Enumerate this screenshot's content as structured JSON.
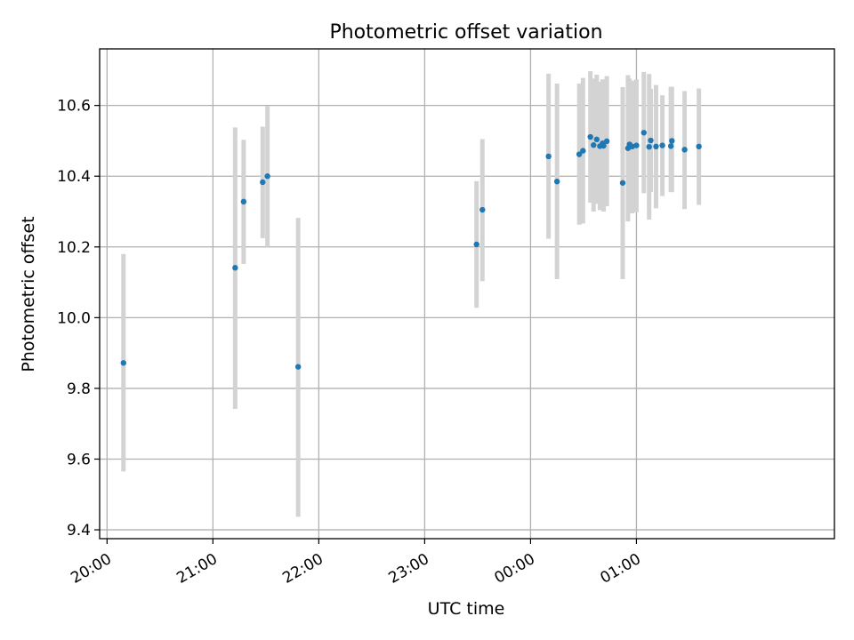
{
  "chart_data": {
    "type": "scatter",
    "title": "Photometric offset variation",
    "xlabel": "UTC time",
    "ylabel": "Photometric offset",
    "xlim_hours": [
      19.93,
      26.87
    ],
    "ylim": [
      9.375,
      10.76
    ],
    "grid": true,
    "x_ticks": [
      {
        "label": "20:00",
        "hour": 20
      },
      {
        "label": "21:00",
        "hour": 21
      },
      {
        "label": "22:00",
        "hour": 22
      },
      {
        "label": "23:00",
        "hour": 23
      },
      {
        "label": "00:00",
        "hour": 24
      },
      {
        "label": "01:00",
        "hour": 25
      }
    ],
    "y_ticks": [
      {
        "label": "9.4",
        "value": 9.4
      },
      {
        "label": "9.6",
        "value": 9.6
      },
      {
        "label": "9.8",
        "value": 9.8
      },
      {
        "label": "10.0",
        "value": 10.0
      },
      {
        "label": "10.2",
        "value": 10.2
      },
      {
        "label": "10.4",
        "value": 10.4
      },
      {
        "label": "10.6",
        "value": 10.6
      }
    ],
    "colors": {
      "point": "#1f77b4",
      "errorbar": "#d3d3d3",
      "grid": "#b0b0b0",
      "axes": "#000000"
    },
    "points": [
      {
        "hour": 20.155,
        "y": 9.872,
        "ylow": 9.565,
        "yhigh": 10.18
      },
      {
        "hour": 21.21,
        "y": 10.141,
        "ylow": 9.742,
        "yhigh": 10.538
      },
      {
        "hour": 21.29,
        "y": 10.328,
        "ylow": 10.152,
        "yhigh": 10.503
      },
      {
        "hour": 21.47,
        "y": 10.383,
        "ylow": 10.225,
        "yhigh": 10.54
      },
      {
        "hour": 21.515,
        "y": 10.4,
        "ylow": 10.2,
        "yhigh": 10.598
      },
      {
        "hour": 21.805,
        "y": 9.861,
        "ylow": 9.437,
        "yhigh": 10.282
      },
      {
        "hour": 23.49,
        "y": 10.207,
        "ylow": 10.028,
        "yhigh": 10.386
      },
      {
        "hour": 23.545,
        "y": 10.305,
        "ylow": 10.103,
        "yhigh": 10.505
      },
      {
        "hour": 24.17,
        "y": 10.456,
        "ylow": 10.223,
        "yhigh": 10.69
      },
      {
        "hour": 24.25,
        "y": 10.385,
        "ylow": 10.109,
        "yhigh": 10.662
      },
      {
        "hour": 24.46,
        "y": 10.462,
        "ylow": 10.263,
        "yhigh": 10.662
      },
      {
        "hour": 24.495,
        "y": 10.472,
        "ylow": 10.266,
        "yhigh": 10.678
      },
      {
        "hour": 24.565,
        "y": 10.511,
        "ylow": 10.325,
        "yhigh": 10.697
      },
      {
        "hour": 24.595,
        "y": 10.488,
        "ylow": 10.3,
        "yhigh": 10.676
      },
      {
        "hour": 24.625,
        "y": 10.504,
        "ylow": 10.322,
        "yhigh": 10.687
      },
      {
        "hour": 24.655,
        "y": 10.485,
        "ylow": 10.304,
        "yhigh": 10.667
      },
      {
        "hour": 24.68,
        "y": 10.493,
        "ylow": 10.312,
        "yhigh": 10.674
      },
      {
        "hour": 24.69,
        "y": 10.486,
        "ylow": 10.3,
        "yhigh": 10.672
      },
      {
        "hour": 24.72,
        "y": 10.499,
        "ylow": 10.315,
        "yhigh": 10.683
      },
      {
        "hour": 24.87,
        "y": 10.381,
        "ylow": 10.109,
        "yhigh": 10.652
      },
      {
        "hour": 24.92,
        "y": 10.479,
        "ylow": 10.272,
        "yhigh": 10.686
      },
      {
        "hour": 24.935,
        "y": 10.49,
        "ylow": 10.3,
        "yhigh": 10.676
      },
      {
        "hour": 24.96,
        "y": 10.484,
        "ylow": 10.295,
        "yhigh": 10.67
      },
      {
        "hour": 25.0,
        "y": 10.487,
        "ylow": 10.298,
        "yhigh": 10.674
      },
      {
        "hour": 25.07,
        "y": 10.523,
        "ylow": 10.352,
        "yhigh": 10.695
      },
      {
        "hour": 25.12,
        "y": 10.483,
        "ylow": 10.277,
        "yhigh": 10.689
      },
      {
        "hour": 25.135,
        "y": 10.501,
        "ylow": 10.355,
        "yhigh": 10.647
      },
      {
        "hour": 25.185,
        "y": 10.484,
        "ylow": 10.309,
        "yhigh": 10.658
      },
      {
        "hour": 25.245,
        "y": 10.487,
        "ylow": 10.344,
        "yhigh": 10.629
      },
      {
        "hour": 25.325,
        "y": 10.485,
        "ylow": 10.355,
        "yhigh": 10.653
      },
      {
        "hour": 25.335,
        "y": 10.5,
        "ylow": 10.355,
        "yhigh": 10.653
      },
      {
        "hour": 25.455,
        "y": 10.475,
        "ylow": 10.307,
        "yhigh": 10.641
      },
      {
        "hour": 25.59,
        "y": 10.484,
        "ylow": 10.319,
        "yhigh": 10.648
      }
    ]
  }
}
